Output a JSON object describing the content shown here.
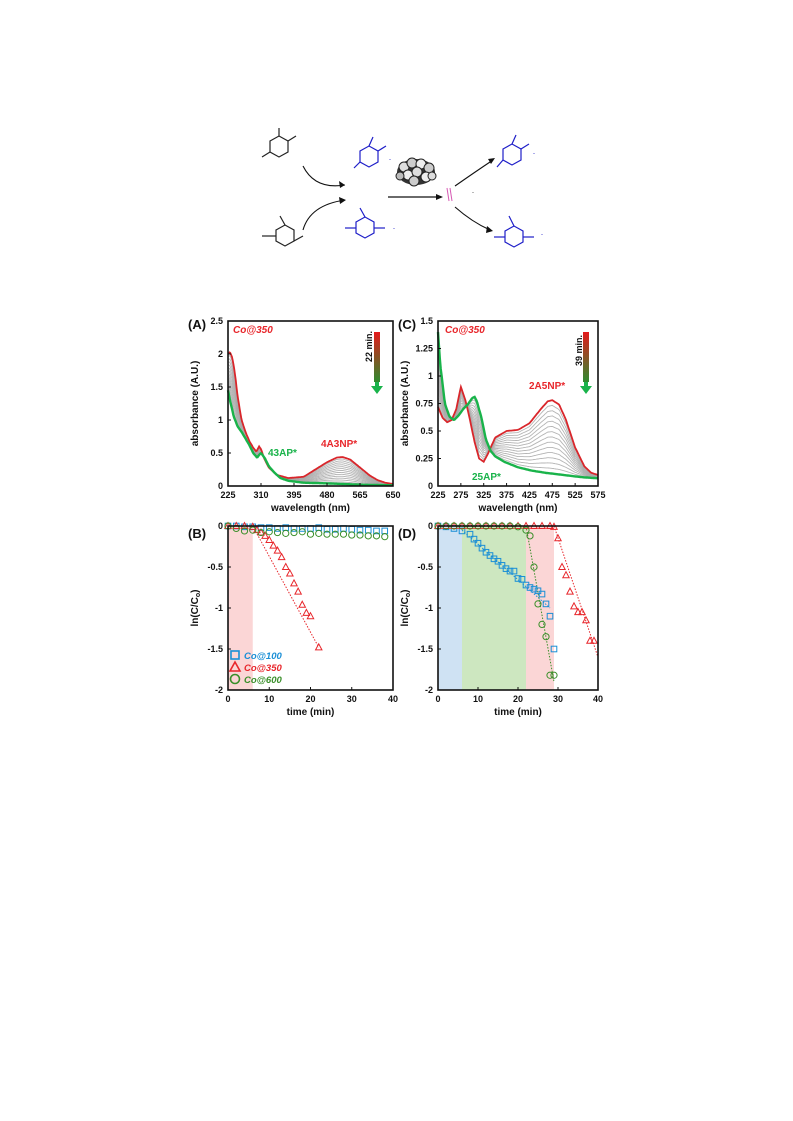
{
  "panels": {
    "A": {
      "letter": "(A)",
      "catalyst": "Co@350",
      "time_label": "22 min.",
      "start_label": "43AP*",
      "product_label": "4A3NP*"
    },
    "B": {
      "letter": "(B)"
    },
    "C": {
      "letter": "(C)",
      "catalyst": "Co@350",
      "time_label": "39 min.",
      "start_label": "25AP*",
      "product_label": "2A5NP*"
    },
    "D": {
      "letter": "(D)"
    }
  },
  "legend": [
    "Co@100",
    "Co@350",
    "Co@600"
  ],
  "colors": {
    "co100": "#1a8fd6",
    "co350": "#e8272c",
    "co600": "#3a8f2a",
    "green_spectrum": "#19b34a",
    "red_spectrum": "#d9262b",
    "gray_spectrum": "#a8a8a8",
    "scheme_blue": "#1e1ec8",
    "scheme_pink": "#d65ab4",
    "band_pink": "#fbd6d6",
    "band_blue": "#cfe2f3",
    "band_green": "#cde7c0"
  },
  "chart_data": [
    {
      "type": "line",
      "panel": "A",
      "xlabel": "wavelength (nm)",
      "ylabel": "absorbance (A.U.)",
      "xlim": [
        225,
        650
      ],
      "ylim": [
        0,
        2.5
      ],
      "xticks": [
        225,
        310,
        395,
        480,
        565,
        650
      ],
      "yticks": [
        {
          "v": 0,
          "label": "0"
        },
        {
          "v": 0.5,
          "label": "0.5"
        },
        {
          "v": 1,
          "label": "1"
        },
        {
          "v": 1.5,
          "label": "1.5"
        },
        {
          "v": 2,
          "label": "2"
        },
        {
          "v": 2.5,
          "label": "2.5"
        }
      ],
      "series": [
        {
          "x": [
            225,
            230,
            235,
            240,
            245,
            250,
            260,
            270,
            280,
            290,
            298,
            305,
            310,
            318,
            330,
            350,
            380,
            420,
            450,
            480,
            505,
            520,
            540,
            565,
            590,
            610,
            630,
            650
          ],
          "y": [
            2.0,
            2.03,
            1.96,
            1.82,
            1.6,
            1.35,
            1.0,
            0.82,
            0.68,
            0.58,
            0.52,
            0.6,
            0.56,
            0.42,
            0.28,
            0.17,
            0.12,
            0.14,
            0.25,
            0.36,
            0.43,
            0.44,
            0.4,
            0.28,
            0.16,
            0.09,
            0.05,
            0.03
          ],
          "role": "start"
        },
        {
          "x": [
            225,
            230,
            240,
            250,
            260,
            270,
            280,
            290,
            300,
            305,
            310,
            320,
            330,
            345,
            360,
            380,
            420,
            480,
            565,
            650
          ],
          "y": [
            1.45,
            1.3,
            1.05,
            0.9,
            0.82,
            0.72,
            0.62,
            0.5,
            0.43,
            0.47,
            0.5,
            0.42,
            0.3,
            0.2,
            0.12,
            0.08,
            0.05,
            0.04,
            0.02,
            0.01
          ],
          "role": "end"
        }
      ]
    },
    {
      "type": "scatter",
      "panel": "B",
      "xlabel": "time (min)",
      "ylabel": "ln(C/C0)",
      "xlim": [
        0,
        40
      ],
      "ylim": [
        -2,
        0
      ],
      "xticks": [
        0,
        10,
        20,
        30,
        40
      ],
      "yticks": [
        {
          "v": 0,
          "label": "0"
        },
        {
          "v": -0.5,
          "label": "-0.5"
        },
        {
          "v": -1,
          "label": "-1"
        },
        {
          "v": -1.5,
          "label": "-1.5"
        },
        {
          "v": -2,
          "label": "-2"
        }
      ],
      "induction": [
        {
          "from": 0,
          "to": 6,
          "color": "pink"
        }
      ],
      "series": [
        {
          "name": "Co@100",
          "marker": "square",
          "x": [
            0,
            2,
            4,
            6,
            8,
            10,
            12,
            14,
            16,
            18,
            20,
            22,
            24,
            26,
            28,
            30,
            32,
            34,
            36,
            38
          ],
          "y": [
            0,
            0,
            -0.01,
            -0.01,
            -0.02,
            -0.02,
            -0.03,
            -0.02,
            -0.03,
            -0.03,
            -0.03,
            -0.02,
            -0.04,
            -0.04,
            -0.03,
            -0.04,
            -0.05,
            -0.05,
            -0.06,
            -0.06
          ]
        },
        {
          "name": "Co@350",
          "marker": "triangle",
          "x": [
            0,
            2,
            4,
            6,
            7,
            8,
            9,
            10,
            11,
            12,
            13,
            14,
            15,
            16,
            17,
            18,
            19,
            20,
            22
          ],
          "y": [
            0,
            0,
            0,
            -0.01,
            -0.05,
            -0.08,
            -0.12,
            -0.17,
            -0.24,
            -0.3,
            -0.38,
            -0.5,
            -0.58,
            -0.7,
            -0.8,
            -0.96,
            -1.06,
            -1.1,
            -1.48
          ]
        },
        {
          "name": "Co@600",
          "marker": "circle",
          "x": [
            0,
            2,
            4,
            6,
            8,
            10,
            12,
            14,
            16,
            18,
            20,
            22,
            24,
            26,
            28,
            30,
            32,
            34,
            36,
            38
          ],
          "y": [
            0,
            -0.03,
            -0.06,
            -0.05,
            -0.08,
            -0.07,
            -0.08,
            -0.09,
            -0.08,
            -0.07,
            -0.1,
            -0.09,
            -0.1,
            -0.1,
            -0.1,
            -0.11,
            -0.11,
            -0.12,
            -0.12,
            -0.13
          ]
        }
      ],
      "fit_lines": [
        {
          "series": "Co@350",
          "x": [
            6,
            22
          ],
          "y": [
            0,
            -1.48
          ]
        }
      ]
    },
    {
      "type": "line",
      "panel": "C",
      "xlabel": "wavelength (nm)",
      "ylabel": "absorbance (A.U.)",
      "xlim": [
        225,
        575
      ],
      "ylim": [
        0,
        1.5
      ],
      "xticks": [
        225,
        275,
        325,
        375,
        425,
        475,
        525,
        575
      ],
      "yticks": [
        {
          "v": 0,
          "label": "0"
        },
        {
          "v": 0.25,
          "label": "0.25"
        },
        {
          "v": 0.5,
          "label": "0.5"
        },
        {
          "v": 0.75,
          "label": "0.75"
        },
        {
          "v": 1,
          "label": "1"
        },
        {
          "v": 1.25,
          "label": "1.25"
        },
        {
          "v": 1.5,
          "label": "1.5"
        }
      ],
      "series": [
        {
          "x": [
            225,
            235,
            245,
            255,
            265,
            275,
            285,
            295,
            305,
            315,
            325,
            335,
            350,
            375,
            400,
            425,
            450,
            465,
            475,
            490,
            505,
            525,
            545,
            560,
            575
          ],
          "y": [
            0.72,
            0.62,
            0.58,
            0.6,
            0.7,
            0.9,
            0.78,
            0.6,
            0.4,
            0.25,
            0.22,
            0.3,
            0.44,
            0.5,
            0.51,
            0.57,
            0.7,
            0.77,
            0.78,
            0.74,
            0.6,
            0.35,
            0.18,
            0.12,
            0.1
          ],
          "role": "start"
        },
        {
          "x": [
            225,
            230,
            240,
            250,
            260,
            270,
            280,
            290,
            300,
            305,
            310,
            320,
            330,
            340,
            350,
            370,
            400,
            430,
            460,
            500,
            540,
            575
          ],
          "y": [
            1.4,
            1.1,
            0.75,
            0.63,
            0.6,
            0.64,
            0.7,
            0.74,
            0.8,
            0.81,
            0.77,
            0.62,
            0.42,
            0.32,
            0.27,
            0.22,
            0.17,
            0.14,
            0.12,
            0.1,
            0.08,
            0.07
          ],
          "role": "end"
        }
      ]
    },
    {
      "type": "scatter",
      "panel": "D",
      "xlabel": "time (min)",
      "ylabel": "ln(C/C0)",
      "xlim": [
        0,
        40
      ],
      "ylim": [
        -2,
        0
      ],
      "xticks": [
        0,
        10,
        20,
        30,
        40
      ],
      "yticks": [
        {
          "v": 0,
          "label": "0"
        },
        {
          "v": -0.5,
          "label": "-0.5"
        },
        {
          "v": -1,
          "label": "-1"
        },
        {
          "v": -1.5,
          "label": "-1.5"
        },
        {
          "v": -2,
          "label": "-2"
        }
      ],
      "induction": [
        {
          "from": 0,
          "to": 6,
          "color": "blue"
        },
        {
          "from": 6,
          "to": 22,
          "color": "green"
        },
        {
          "from": 22,
          "to": 29,
          "color": "pink"
        }
      ],
      "series": [
        {
          "name": "Co@100",
          "marker": "square",
          "x": [
            0,
            2,
            4,
            6,
            8,
            9,
            10,
            11,
            12,
            13,
            14,
            15,
            16,
            17,
            18,
            19,
            20,
            21,
            22,
            23,
            24,
            25,
            26,
            27,
            28,
            29
          ],
          "y": [
            0,
            -0.01,
            -0.03,
            -0.06,
            -0.1,
            -0.16,
            -0.21,
            -0.27,
            -0.32,
            -0.36,
            -0.4,
            -0.43,
            -0.48,
            -0.52,
            -0.55,
            -0.55,
            -0.64,
            -0.65,
            -0.72,
            -0.75,
            -0.77,
            -0.79,
            -0.83,
            -0.95,
            -1.1,
            -1.5
          ]
        },
        {
          "name": "Co@350",
          "marker": "triangle",
          "x": [
            0,
            2,
            4,
            6,
            8,
            10,
            12,
            14,
            16,
            18,
            20,
            22,
            24,
            26,
            28,
            29,
            30,
            31,
            32,
            33,
            34,
            35,
            36,
            37,
            38,
            39
          ],
          "y": [
            0,
            0,
            0,
            0,
            0,
            0,
            0,
            0,
            0,
            0,
            0,
            0,
            0,
            0,
            0,
            -0.01,
            -0.15,
            -0.5,
            -0.6,
            -0.8,
            -0.98,
            -1.05,
            -1.05,
            -1.15,
            -1.4,
            -1.4
          ]
        },
        {
          "name": "Co@600",
          "marker": "circle",
          "x": [
            0,
            2,
            4,
            6,
            8,
            10,
            12,
            14,
            16,
            18,
            20,
            22,
            23,
            24,
            25,
            26,
            27,
            28,
            29
          ],
          "y": [
            0,
            0,
            0,
            0,
            0,
            0,
            0,
            0,
            0,
            0,
            -0.01,
            -0.05,
            -0.12,
            -0.5,
            -0.95,
            -1.2,
            -1.35,
            -1.82,
            -1.82
          ]
        }
      ],
      "fit_lines": [
        {
          "series": "Co@100",
          "x": [
            6,
            28
          ],
          "y": [
            -0.05,
            -1.0
          ]
        },
        {
          "series": "Co@600",
          "x": [
            22,
            29
          ],
          "y": [
            0,
            -1.9
          ]
        },
        {
          "series": "Co@350",
          "x": [
            29,
            40
          ],
          "y": [
            0,
            -1.6
          ]
        }
      ]
    }
  ]
}
